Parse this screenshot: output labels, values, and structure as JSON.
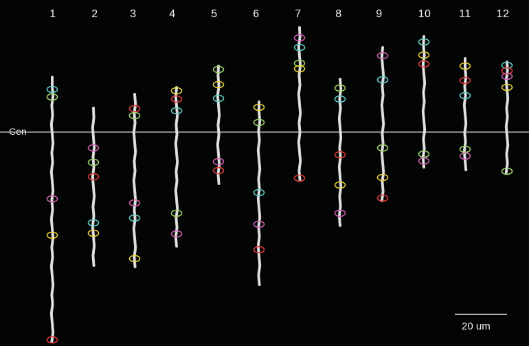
{
  "figure": {
    "centromere_label": "Cen",
    "scale_bar_label": "20 um"
  },
  "colors": {
    "background": "#030404",
    "chromosome": "#e6e6e6",
    "cen_line": "#d8d8d8",
    "probe_cyan": "#5fd0c8",
    "probe_green": "#9ed66a",
    "probe_yellow": "#e8d23a",
    "probe_red": "#e23a3a",
    "probe_pink": "#d05fb0"
  },
  "lanes": [
    {
      "label": "1",
      "probes": [
        {
          "color": "cyan"
        },
        {
          "color": "green"
        },
        {
          "color": "pink"
        },
        {
          "color": "yellow"
        },
        {
          "color": "red"
        }
      ]
    },
    {
      "label": "2",
      "probes": [
        {
          "color": "pink"
        },
        {
          "color": "green"
        },
        {
          "color": "red"
        },
        {
          "color": "cyan"
        },
        {
          "color": "yellow"
        }
      ]
    },
    {
      "label": "3",
      "probes": [
        {
          "color": "red"
        },
        {
          "color": "green"
        },
        {
          "color": "pink"
        },
        {
          "color": "cyan"
        },
        {
          "color": "yellow"
        }
      ]
    },
    {
      "label": "4",
      "probes": [
        {
          "color": "yellow"
        },
        {
          "color": "red"
        },
        {
          "color": "cyan"
        },
        {
          "color": "green"
        },
        {
          "color": "pink"
        }
      ]
    },
    {
      "label": "5",
      "probes": [
        {
          "color": "green"
        },
        {
          "color": "yellow"
        },
        {
          "color": "cyan"
        },
        {
          "color": "pink"
        },
        {
          "color": "red"
        }
      ]
    },
    {
      "label": "6",
      "probes": [
        {
          "color": "yellow"
        },
        {
          "color": "green"
        },
        {
          "color": "cyan"
        },
        {
          "color": "pink"
        },
        {
          "color": "red"
        }
      ]
    },
    {
      "label": "7",
      "probes": [
        {
          "color": "pink"
        },
        {
          "color": "cyan"
        },
        {
          "color": "green"
        },
        {
          "color": "yellow"
        },
        {
          "color": "red"
        }
      ]
    },
    {
      "label": "8",
      "probes": [
        {
          "color": "green"
        },
        {
          "color": "cyan"
        },
        {
          "color": "red"
        },
        {
          "color": "yellow"
        },
        {
          "color": "pink"
        }
      ]
    },
    {
      "label": "9",
      "probes": [
        {
          "color": "pink"
        },
        {
          "color": "cyan"
        },
        {
          "color": "green"
        },
        {
          "color": "yellow"
        },
        {
          "color": "red"
        }
      ]
    },
    {
      "label": "10",
      "probes": [
        {
          "color": "cyan"
        },
        {
          "color": "yellow"
        },
        {
          "color": "red"
        },
        {
          "color": "green"
        },
        {
          "color": "pink"
        }
      ]
    },
    {
      "label": "11",
      "probes": [
        {
          "color": "yellow"
        },
        {
          "color": "red"
        },
        {
          "color": "cyan"
        },
        {
          "color": "green"
        },
        {
          "color": "pink"
        }
      ]
    },
    {
      "label": "12",
      "probes": [
        {
          "color": "cyan"
        },
        {
          "color": "red"
        },
        {
          "color": "pink"
        },
        {
          "color": "yellow"
        },
        {
          "color": "green"
        }
      ]
    }
  ]
}
